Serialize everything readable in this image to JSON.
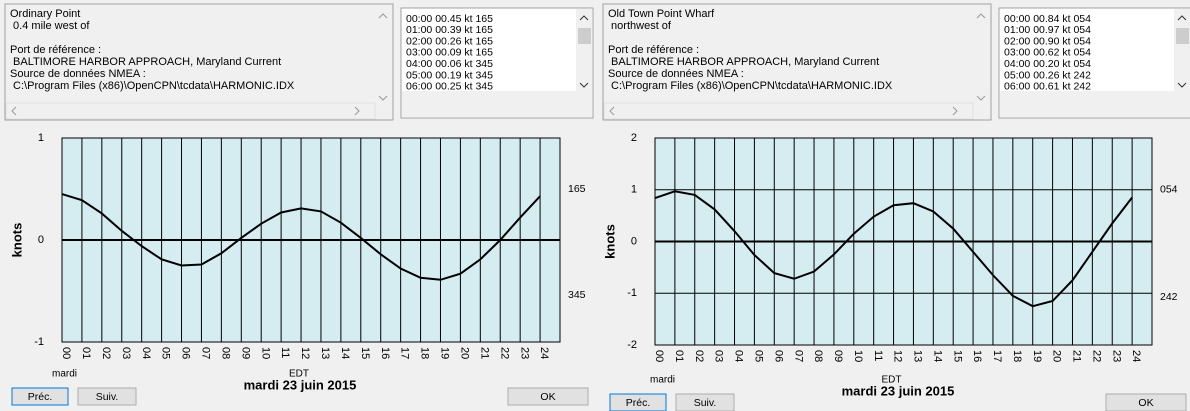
{
  "panels": [
    {
      "station": [
        "Ordinary Point",
        " 0.4 mile west of"
      ],
      "port_label": "Port de référence :",
      "port": " BALTIMORE HARBOR APPROACH, Maryland Current",
      "source_label": "Source de données NMEA :",
      "source": " C:\\Program Files (x86)\\OpenCPN\\tcdata\\HARMONIC.IDX",
      "list": [
        "00:00 00.45 kt 165",
        "01:00 00.39 kt 165",
        "02:00 00.26 kt 165",
        "03:00 00.09 kt 165",
        "04:00 00.06 kt 345",
        "05:00 00.19 kt 345",
        "06:00 00.25 kt 345"
      ],
      "chart_data": {
        "type": "line",
        "ylabel": "knots",
        "xlabel": "EDT",
        "day_label": "mardi",
        "title": "mardi 23 juin 2015",
        "annotations": [
          "165",
          "345"
        ],
        "color": "#000000",
        "background": "#d5ecf1",
        "x": [
          0,
          1,
          2,
          3,
          4,
          5,
          6,
          7,
          8,
          9,
          10,
          11,
          12,
          13,
          14,
          15,
          16,
          17,
          18,
          19,
          20,
          21,
          22,
          23,
          24
        ],
        "values": [
          0.45,
          0.39,
          0.26,
          0.09,
          -0.06,
          -0.19,
          -0.25,
          -0.24,
          -0.13,
          0.02,
          0.16,
          0.27,
          0.31,
          0.28,
          0.17,
          0.02,
          -0.14,
          -0.28,
          -0.37,
          -0.39,
          -0.33,
          -0.19,
          0.0,
          0.22,
          0.43
        ],
        "xlim": [
          0,
          25
        ],
        "xticks": [
          {
            "value": 0,
            "label": "00"
          },
          {
            "value": 1,
            "label": "01"
          },
          {
            "value": 2,
            "label": "02"
          },
          {
            "value": 3,
            "label": "03"
          },
          {
            "value": 4,
            "label": "04"
          },
          {
            "value": 5,
            "label": "05"
          },
          {
            "value": 6,
            "label": "06"
          },
          {
            "value": 7,
            "label": "07"
          },
          {
            "value": 8,
            "label": "08"
          },
          {
            "value": 9,
            "label": "09"
          },
          10,
          11,
          12,
          13,
          14,
          15,
          16,
          17,
          18,
          19,
          20,
          21,
          22,
          23,
          24
        ],
        "ylim": [
          -1,
          1
        ],
        "yticks": [
          -1,
          0,
          1
        ]
      },
      "buttons": [
        "Préc.",
        "Suiv.",
        "OK"
      ]
    },
    {
      "station": [
        "Old Town Point Wharf",
        " northwest of"
      ],
      "port_label": "Port de référence :",
      "port": " BALTIMORE HARBOR APPROACH, Maryland Current",
      "source_label": "Source de données NMEA :",
      "source": " C:\\Program Files (x86)\\OpenCPN\\tcdata\\HARMONIC.IDX",
      "list": [
        "00:00 00.84 kt 054",
        "01:00 00.97 kt 054",
        "02:00 00.90 kt 054",
        "03:00 00.62 kt 054",
        "04:00 00.20 kt 054",
        "05:00 00.26 kt 242",
        "06:00 00.61 kt 242"
      ],
      "chart_data": {
        "type": "line",
        "ylabel": "knots",
        "xlabel": "EDT",
        "day_label": "mardi",
        "title": "mardi 23 juin 2015",
        "annotations": [
          "054",
          "242"
        ],
        "color": "#000000",
        "background": "#d5ecf1",
        "x": [
          0,
          1,
          2,
          3,
          4,
          5,
          6,
          7,
          8,
          9,
          10,
          11,
          12,
          13,
          14,
          15,
          16,
          17,
          18,
          19,
          20,
          21,
          22,
          23,
          24
        ],
        "values": [
          0.84,
          0.97,
          0.9,
          0.62,
          0.2,
          -0.26,
          -0.61,
          -0.72,
          -0.58,
          -0.25,
          0.15,
          0.48,
          0.7,
          0.74,
          0.58,
          0.25,
          -0.2,
          -0.65,
          -1.05,
          -1.25,
          -1.15,
          -0.75,
          -0.2,
          0.35,
          0.85
        ],
        "xlim": [
          0,
          25
        ],
        "xticks": [
          {
            "value": 0,
            "label": "00"
          },
          {
            "value": 1,
            "label": "01"
          },
          {
            "value": 2,
            "label": "02"
          },
          {
            "value": 3,
            "label": "03"
          },
          {
            "value": 4,
            "label": "04"
          },
          {
            "value": 5,
            "label": "05"
          },
          {
            "value": 6,
            "label": "06"
          },
          {
            "value": 7,
            "label": "07"
          },
          {
            "value": 8,
            "label": "08"
          },
          {
            "value": 9,
            "label": "09"
          },
          10,
          11,
          12,
          13,
          14,
          15,
          16,
          17,
          18,
          19,
          20,
          21,
          22,
          23,
          24
        ],
        "ylim": [
          -2,
          2
        ],
        "yticks": [
          -2,
          -1,
          0,
          1,
          2
        ]
      },
      "buttons": [
        "Préc.",
        "Suiv.",
        "OK"
      ]
    }
  ]
}
